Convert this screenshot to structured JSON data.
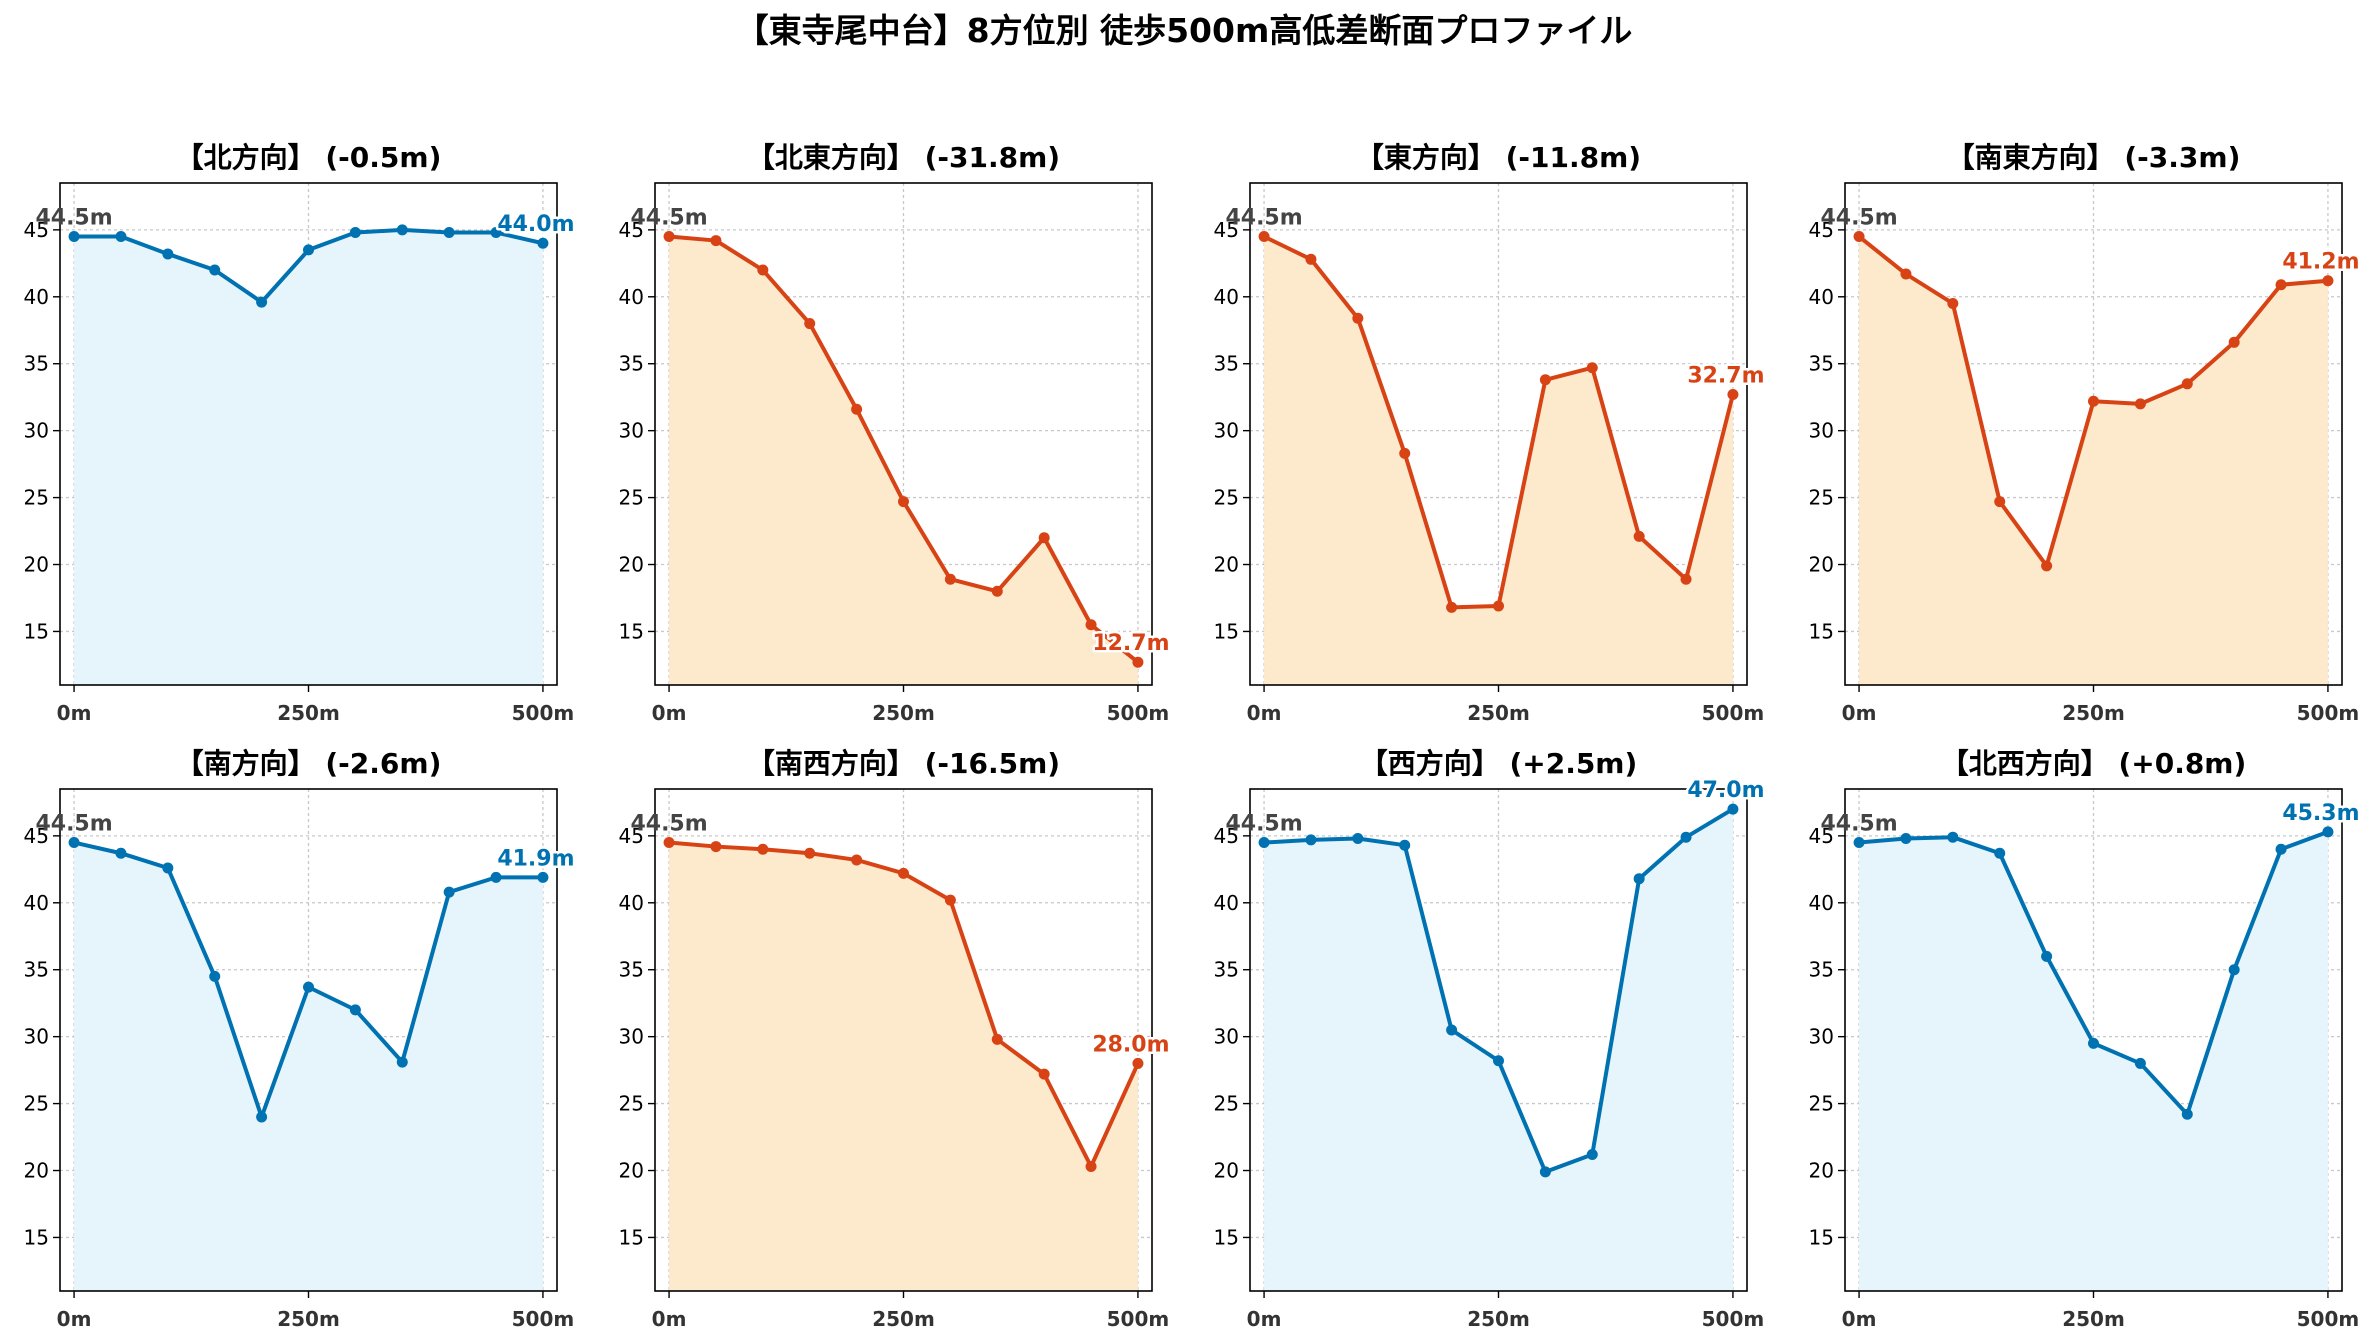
{
  "figure_title": "【東寺尾中台】8方位別 徒歩500m高低差断面プロファイル",
  "colors": {
    "up": "#0072b2",
    "down": "#d84315",
    "up_fill": "#e6f5fb",
    "down_fill": "#fde9cc",
    "start_label": "#444444",
    "grid": "#c8c8c8",
    "axis": "#000000"
  },
  "chart_data": [
    {
      "type": "area",
      "title": "【北方向】 (-0.5m)",
      "trend": "up",
      "x": [
        0,
        50,
        100,
        150,
        200,
        250,
        300,
        350,
        400,
        450,
        500
      ],
      "values": [
        44.5,
        44.5,
        43.2,
        42.0,
        39.6,
        43.5,
        44.8,
        45.0,
        44.8,
        44.8,
        44.0
      ],
      "start_label": "44.5m",
      "end_label": "44.0m",
      "xticks": [
        0,
        250,
        500
      ],
      "xtick_labels": [
        "0m",
        "250m",
        "500m"
      ],
      "yticks": [
        15,
        20,
        25,
        30,
        35,
        40,
        45
      ],
      "ylim": [
        11,
        48.5
      ],
      "xlim": [
        -15,
        515
      ],
      "grid": true
    },
    {
      "type": "area",
      "title": "【北東方向】 (-31.8m)",
      "trend": "down",
      "x": [
        0,
        50,
        100,
        150,
        200,
        250,
        300,
        350,
        400,
        450,
        500
      ],
      "values": [
        44.5,
        44.2,
        42.0,
        38.0,
        31.6,
        24.7,
        18.9,
        18.0,
        22.0,
        15.5,
        12.7
      ],
      "start_label": "44.5m",
      "end_label": "12.7m",
      "xticks": [
        0,
        250,
        500
      ],
      "xtick_labels": [
        "0m",
        "250m",
        "500m"
      ],
      "yticks": [
        15,
        20,
        25,
        30,
        35,
        40,
        45
      ],
      "ylim": [
        11,
        48.5
      ],
      "xlim": [
        -15,
        515
      ],
      "grid": true
    },
    {
      "type": "area",
      "title": "【東方向】 (-11.8m)",
      "trend": "down",
      "x": [
        0,
        50,
        100,
        150,
        200,
        250,
        300,
        350,
        400,
        450,
        500
      ],
      "values": [
        44.5,
        42.8,
        38.4,
        28.3,
        16.8,
        16.9,
        33.8,
        34.7,
        22.1,
        18.9,
        32.7
      ],
      "start_label": "44.5m",
      "end_label": "32.7m",
      "xticks": [
        0,
        250,
        500
      ],
      "xtick_labels": [
        "0m",
        "250m",
        "500m"
      ],
      "yticks": [
        15,
        20,
        25,
        30,
        35,
        40,
        45
      ],
      "ylim": [
        11,
        48.5
      ],
      "xlim": [
        -15,
        515
      ],
      "grid": true
    },
    {
      "type": "area",
      "title": "【南東方向】 (-3.3m)",
      "trend": "down",
      "x": [
        0,
        50,
        100,
        150,
        200,
        250,
        300,
        350,
        400,
        450,
        500
      ],
      "values": [
        44.5,
        41.7,
        39.5,
        24.7,
        19.9,
        32.2,
        32.0,
        33.5,
        36.6,
        40.9,
        41.2
      ],
      "start_label": "44.5m",
      "end_label": "41.2m",
      "xticks": [
        0,
        250,
        500
      ],
      "xtick_labels": [
        "0m",
        "250m",
        "500m"
      ],
      "yticks": [
        15,
        20,
        25,
        30,
        35,
        40,
        45
      ],
      "ylim": [
        11,
        48.5
      ],
      "xlim": [
        -15,
        515
      ],
      "grid": true
    },
    {
      "type": "area",
      "title": "【南方向】 (-2.6m)",
      "trend": "up",
      "x": [
        0,
        50,
        100,
        150,
        200,
        250,
        300,
        350,
        400,
        450,
        500
      ],
      "values": [
        44.5,
        43.7,
        42.6,
        34.5,
        24.0,
        33.7,
        32.0,
        28.1,
        40.8,
        41.9,
        41.9
      ],
      "start_label": "44.5m",
      "end_label": "41.9m",
      "xticks": [
        0,
        250,
        500
      ],
      "xtick_labels": [
        "0m",
        "250m",
        "500m"
      ],
      "yticks": [
        15,
        20,
        25,
        30,
        35,
        40,
        45
      ],
      "ylim": [
        11,
        48.5
      ],
      "xlim": [
        -15,
        515
      ],
      "grid": true
    },
    {
      "type": "area",
      "title": "【南西方向】 (-16.5m)",
      "trend": "down",
      "x": [
        0,
        50,
        100,
        150,
        200,
        250,
        300,
        350,
        400,
        450,
        500
      ],
      "values": [
        44.5,
        44.2,
        44.0,
        43.7,
        43.2,
        42.2,
        40.2,
        29.8,
        27.2,
        20.3,
        28.0
      ],
      "start_label": "44.5m",
      "end_label": "28.0m",
      "xticks": [
        0,
        250,
        500
      ],
      "xtick_labels": [
        "0m",
        "250m",
        "500m"
      ],
      "yticks": [
        15,
        20,
        25,
        30,
        35,
        40,
        45
      ],
      "ylim": [
        11,
        48.5
      ],
      "xlim": [
        -15,
        515
      ],
      "grid": true
    },
    {
      "type": "area",
      "title": "【西方向】 (+2.5m)",
      "trend": "up",
      "x": [
        0,
        50,
        100,
        150,
        200,
        250,
        300,
        350,
        400,
        450,
        500
      ],
      "values": [
        44.5,
        44.7,
        44.8,
        44.3,
        30.5,
        28.2,
        19.9,
        21.2,
        41.8,
        44.9,
        47.0
      ],
      "start_label": "44.5m",
      "end_label": "47.0m",
      "xticks": [
        0,
        250,
        500
      ],
      "xtick_labels": [
        "0m",
        "250m",
        "500m"
      ],
      "yticks": [
        15,
        20,
        25,
        30,
        35,
        40,
        45
      ],
      "ylim": [
        11,
        48.5
      ],
      "xlim": [
        -15,
        515
      ],
      "grid": true
    },
    {
      "type": "area",
      "title": "【北西方向】 (+0.8m)",
      "trend": "up",
      "x": [
        0,
        50,
        100,
        150,
        200,
        250,
        300,
        350,
        400,
        450,
        500
      ],
      "values": [
        44.5,
        44.8,
        44.9,
        43.7,
        36.0,
        29.5,
        28.0,
        24.2,
        35.0,
        44.0,
        45.3
      ],
      "start_label": "44.5m",
      "end_label": "45.3m",
      "xticks": [
        0,
        250,
        500
      ],
      "xtick_labels": [
        "0m",
        "250m",
        "500m"
      ],
      "yticks": [
        15,
        20,
        25,
        30,
        35,
        40,
        45
      ],
      "ylim": [
        11,
        48.5
      ],
      "xlim": [
        -15,
        515
      ],
      "grid": true
    }
  ]
}
